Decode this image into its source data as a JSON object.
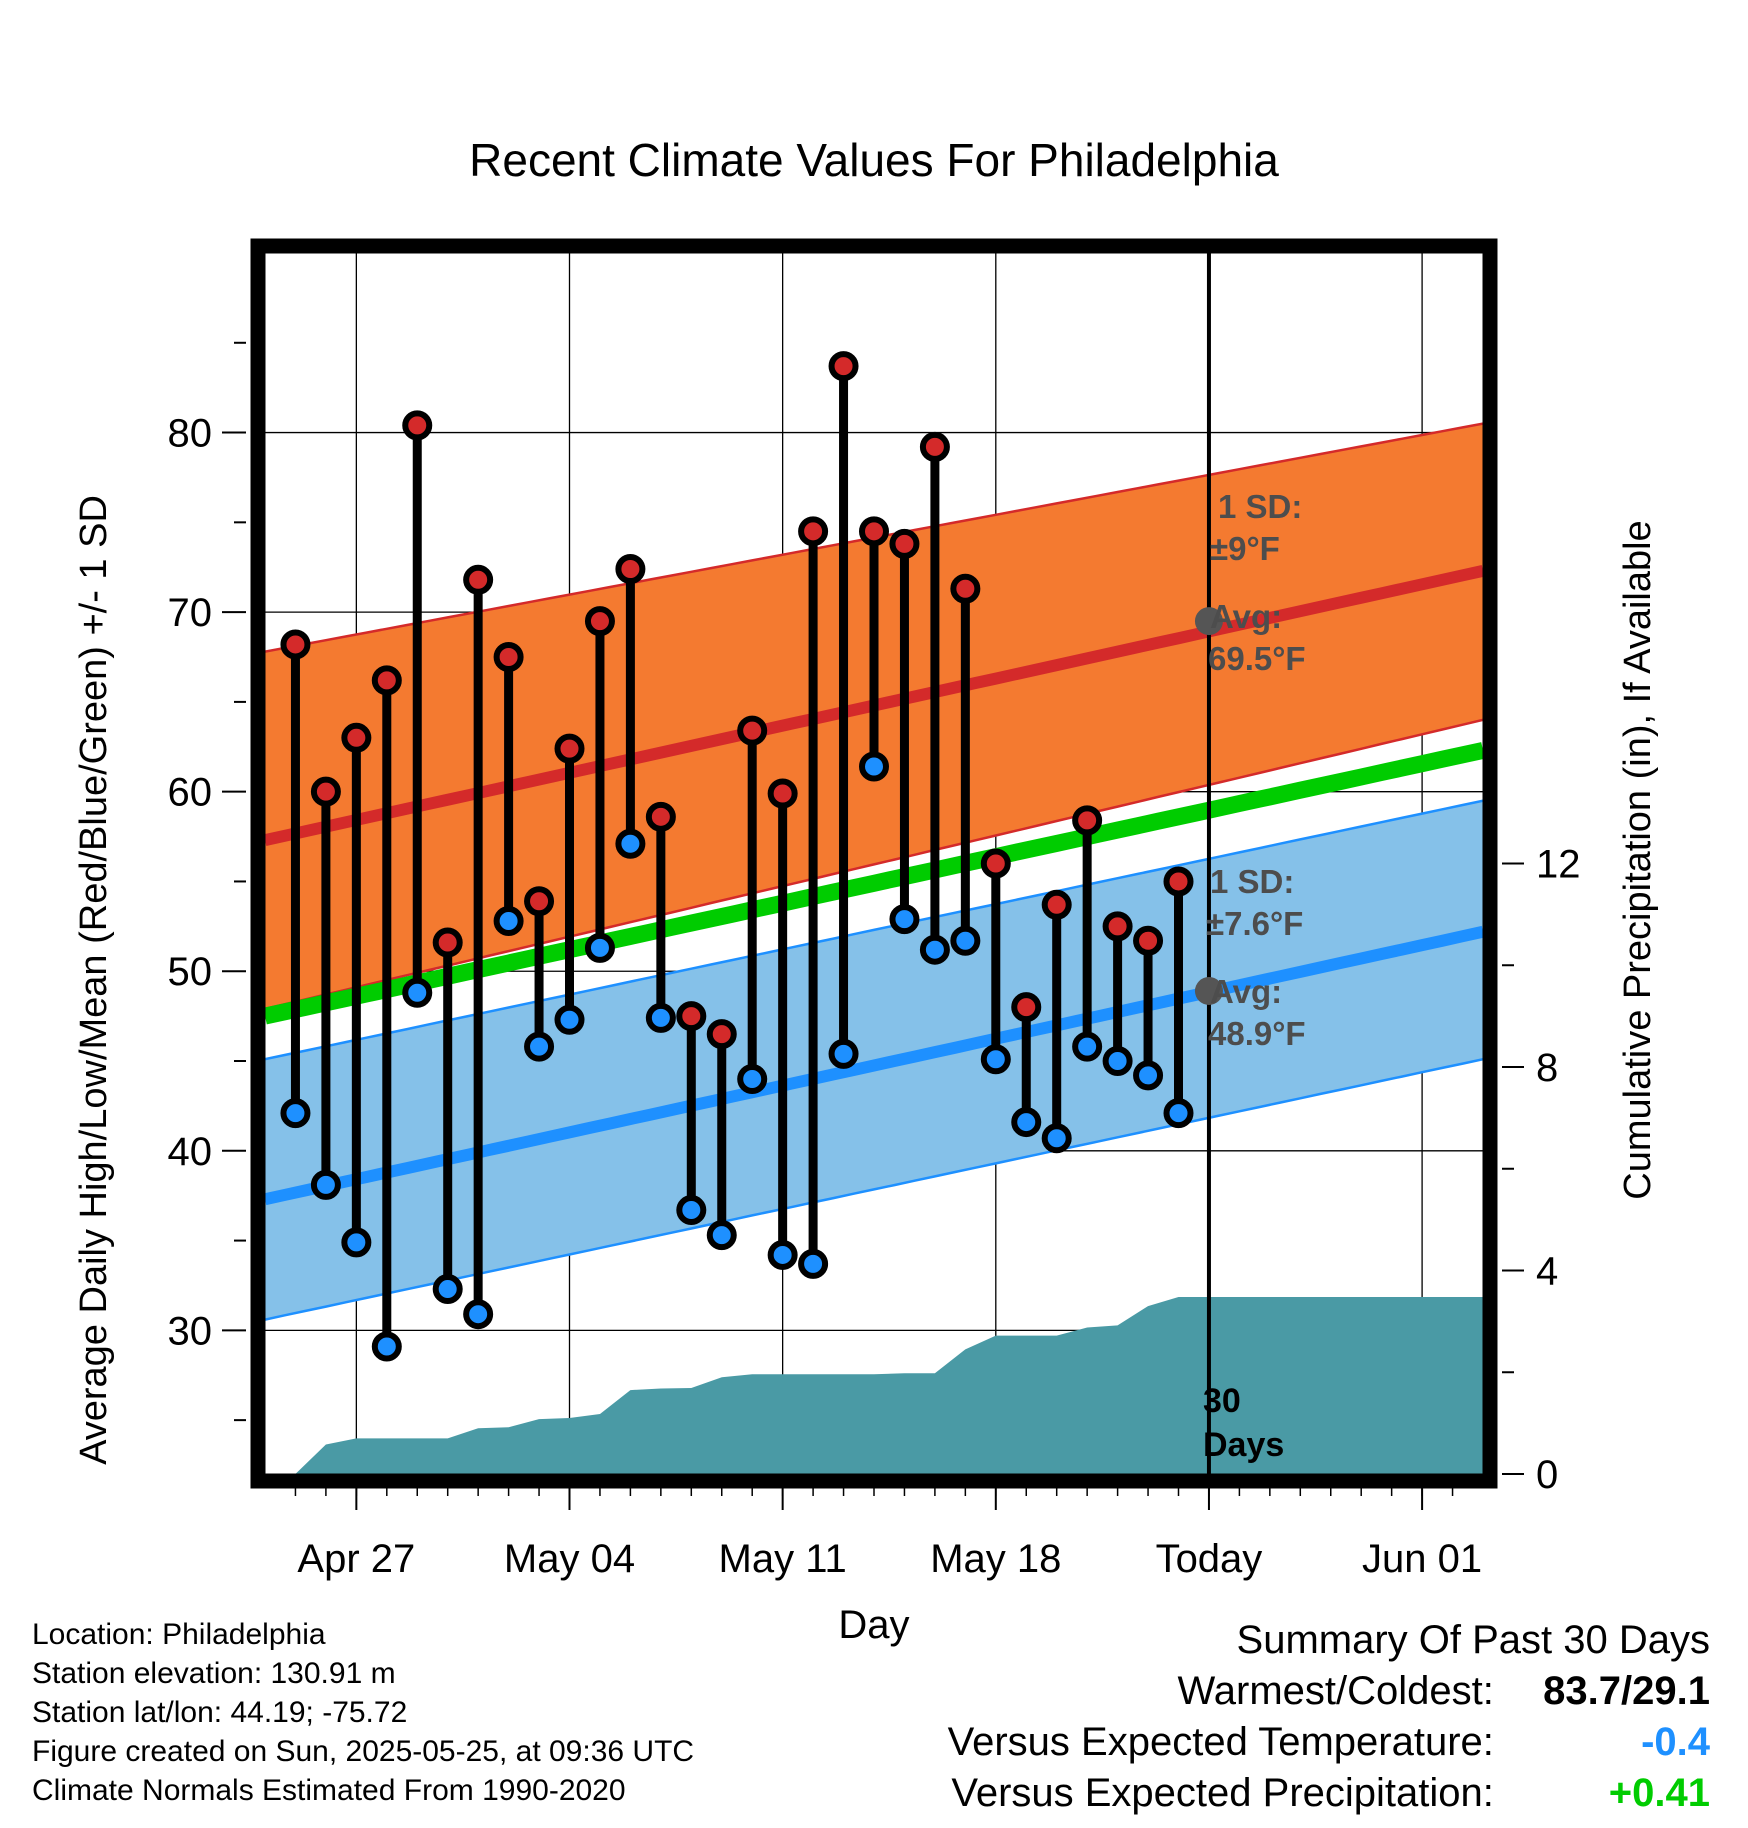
{
  "chart_data": {
    "type": "line",
    "title": "Recent Climate Values For Philadelphia",
    "xlabel": "Day",
    "ylabel": "Average Daily High/Low/Mean (Red/Blue/Green) +/- 1 SD",
    "ylabel_right": "Cumulative Precipitation (in), If Available",
    "x_start": "2025-04-24",
    "x_end": "2025-06-03",
    "x_ticks": [
      {
        "date": "2025-04-27",
        "label": "Apr 27"
      },
      {
        "date": "2025-05-04",
        "label": "May 04"
      },
      {
        "date": "2025-05-11",
        "label": "May 11"
      },
      {
        "date": "2025-05-18",
        "label": "May 18"
      },
      {
        "date": "2025-05-25",
        "label": "Today"
      },
      {
        "date": "2025-06-01",
        "label": "Jun 01"
      }
    ],
    "ylim": [
      22,
      90
    ],
    "y_ticks": [
      30,
      40,
      50,
      60,
      70,
      80
    ],
    "y2lim": [
      0,
      24
    ],
    "y2_ticks": [
      0,
      4,
      8,
      12
    ],
    "grid": true,
    "normal_high": {
      "start": 57.3,
      "end": 72.3
    },
    "normal_high_sd_upper": {
      "start": 67.8,
      "end": 80.5
    },
    "normal_high_sd_lower": {
      "start": 47.9,
      "end": 64.0
    },
    "normal_mean": {
      "start": 47.5,
      "end": 62.3
    },
    "normal_low": {
      "start": 37.3,
      "end": 52.2
    },
    "normal_low_sd_upper": {
      "start": 45.1,
      "end": 59.5
    },
    "normal_low_sd_lower": {
      "start": 30.6,
      "end": 45.1
    },
    "dates": [
      "2025-04-25",
      "2025-04-26",
      "2025-04-27",
      "2025-04-28",
      "2025-04-29",
      "2025-04-30",
      "2025-05-01",
      "2025-05-02",
      "2025-05-03",
      "2025-05-04",
      "2025-05-05",
      "2025-05-06",
      "2025-05-07",
      "2025-05-08",
      "2025-05-09",
      "2025-05-10",
      "2025-05-11",
      "2025-05-12",
      "2025-05-13",
      "2025-05-14",
      "2025-05-15",
      "2025-05-16",
      "2025-05-17",
      "2025-05-18",
      "2025-05-19",
      "2025-05-20",
      "2025-05-21",
      "2025-05-22",
      "2025-05-23",
      "2025-05-24"
    ],
    "series": [
      {
        "name": "High",
        "values": [
          68.2,
          60.0,
          63.0,
          66.2,
          80.4,
          51.6,
          71.8,
          67.5,
          53.9,
          62.4,
          69.5,
          72.4,
          58.6,
          47.5,
          46.5,
          63.4,
          59.9,
          74.5,
          83.7,
          74.5,
          73.8,
          79.2,
          71.3,
          56.0,
          48.0,
          53.7,
          58.4,
          52.5,
          51.7,
          55.0
        ]
      },
      {
        "name": "Low",
        "values": [
          42.1,
          38.1,
          34.9,
          29.1,
          48.8,
          32.3,
          30.9,
          52.8,
          45.8,
          47.3,
          51.3,
          57.1,
          47.4,
          36.7,
          35.3,
          44.0,
          34.2,
          33.7,
          45.4,
          61.4,
          52.9,
          51.2,
          51.7,
          45.1,
          41.6,
          40.7,
          45.8,
          45.0,
          44.2,
          42.1
        ]
      },
      {
        "name": "Cumulative Precipitation",
        "values": [
          0.0,
          0.58,
          0.7,
          0.7,
          0.7,
          0.7,
          0.9,
          0.92,
          1.08,
          1.1,
          1.18,
          1.65,
          1.68,
          1.69,
          1.9,
          1.96,
          1.96,
          1.96,
          1.96,
          1.96,
          1.98,
          1.98,
          2.45,
          2.72,
          2.72,
          2.72,
          2.88,
          2.92,
          3.3,
          3.48
        ]
      }
    ],
    "precip_after_today": 3.48,
    "annotations": {
      "high_sd_line1": "1 SD:",
      "high_sd_line2": "±9°F",
      "high_avg_line1": "Avg:",
      "high_avg_line2": "69.5°F",
      "high_avg_value": 69.5,
      "low_sd_line1": "1 SD:",
      "low_sd_line2": "±7.6°F",
      "low_avg_line1": "Avg:",
      "low_avg_line2": "48.9°F",
      "low_avg_value": 48.9,
      "days_line1": "30",
      "days_line2": "Days"
    }
  },
  "footer": {
    "location": "Location: Philadelphia",
    "elevation": "Station elevation: 130.91 m",
    "latlon": "Station lat/lon: 44.19; -75.72",
    "created": "Figure created on Sun, 2025-05-25, at 09:36 UTC",
    "normals": "Climate Normals Estimated From 1990-2020"
  },
  "summary": {
    "heading": "Summary Of Past 30 Days",
    "warmest_label": "Warmest/Coldest:",
    "warmest_value": "83.7/29.1",
    "temp_label": "Versus Expected Temperature:",
    "temp_value": "-0.4",
    "temp_color": "#1e90ff",
    "precip_label": "Versus Expected Precipitation:",
    "precip_value": "+0.41",
    "precip_color": "#00cc00"
  },
  "colors": {
    "high_band": "#f47a30",
    "high_line": "#d42a2a",
    "mean_line": "#00cc00",
    "low_band": "#85c1e9",
    "low_line": "#1e90ff",
    "precip_fill": "#4a9aa5",
    "high_marker": "#d42a2a",
    "low_marker": "#1e90ff"
  }
}
